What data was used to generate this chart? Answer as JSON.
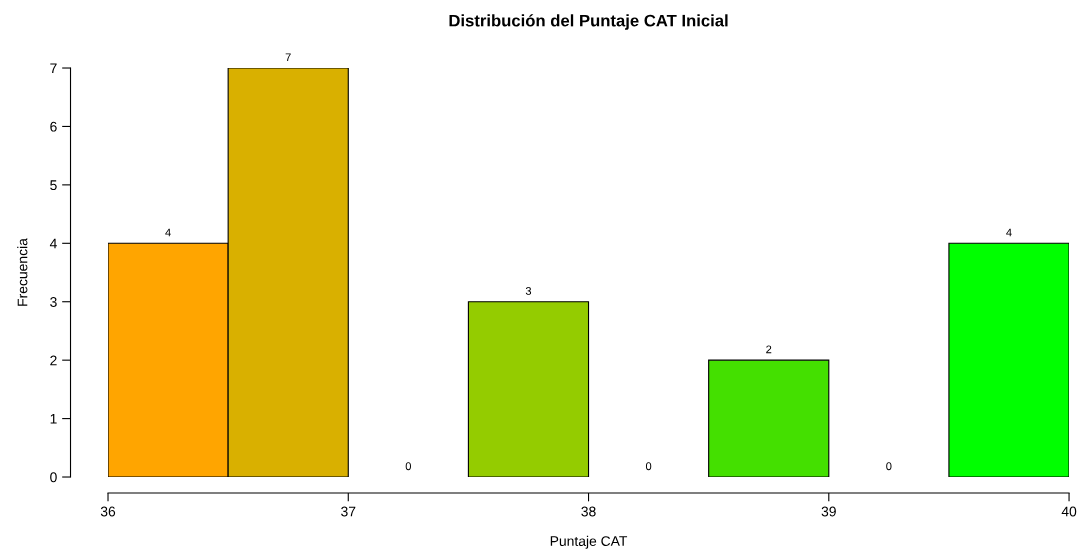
{
  "chart_data": {
    "type": "histogram",
    "title": "Distribución del Puntaje CAT Inicial",
    "xlabel": "Puntaje CAT",
    "ylabel": "Frecuencia",
    "bins": [
      36,
      36.5,
      37,
      37.5,
      38,
      38.5,
      39,
      39.5,
      40
    ],
    "values": [
      4,
      7,
      0,
      3,
      0,
      2,
      0,
      4
    ],
    "colors": [
      "#ffa500",
      "#d9b000",
      "#b6bf00",
      "#94cc00",
      "#6dd600",
      "#44e000",
      "#22f000",
      "#00ff00"
    ],
    "xlim": [
      36,
      40
    ],
    "ylim": [
      0,
      7
    ],
    "xticks": [
      36,
      37,
      38,
      39,
      40
    ],
    "yticks": [
      0,
      1,
      2,
      3,
      4,
      5,
      6,
      7
    ],
    "data_labels": true,
    "grid": false,
    "legend": false
  }
}
